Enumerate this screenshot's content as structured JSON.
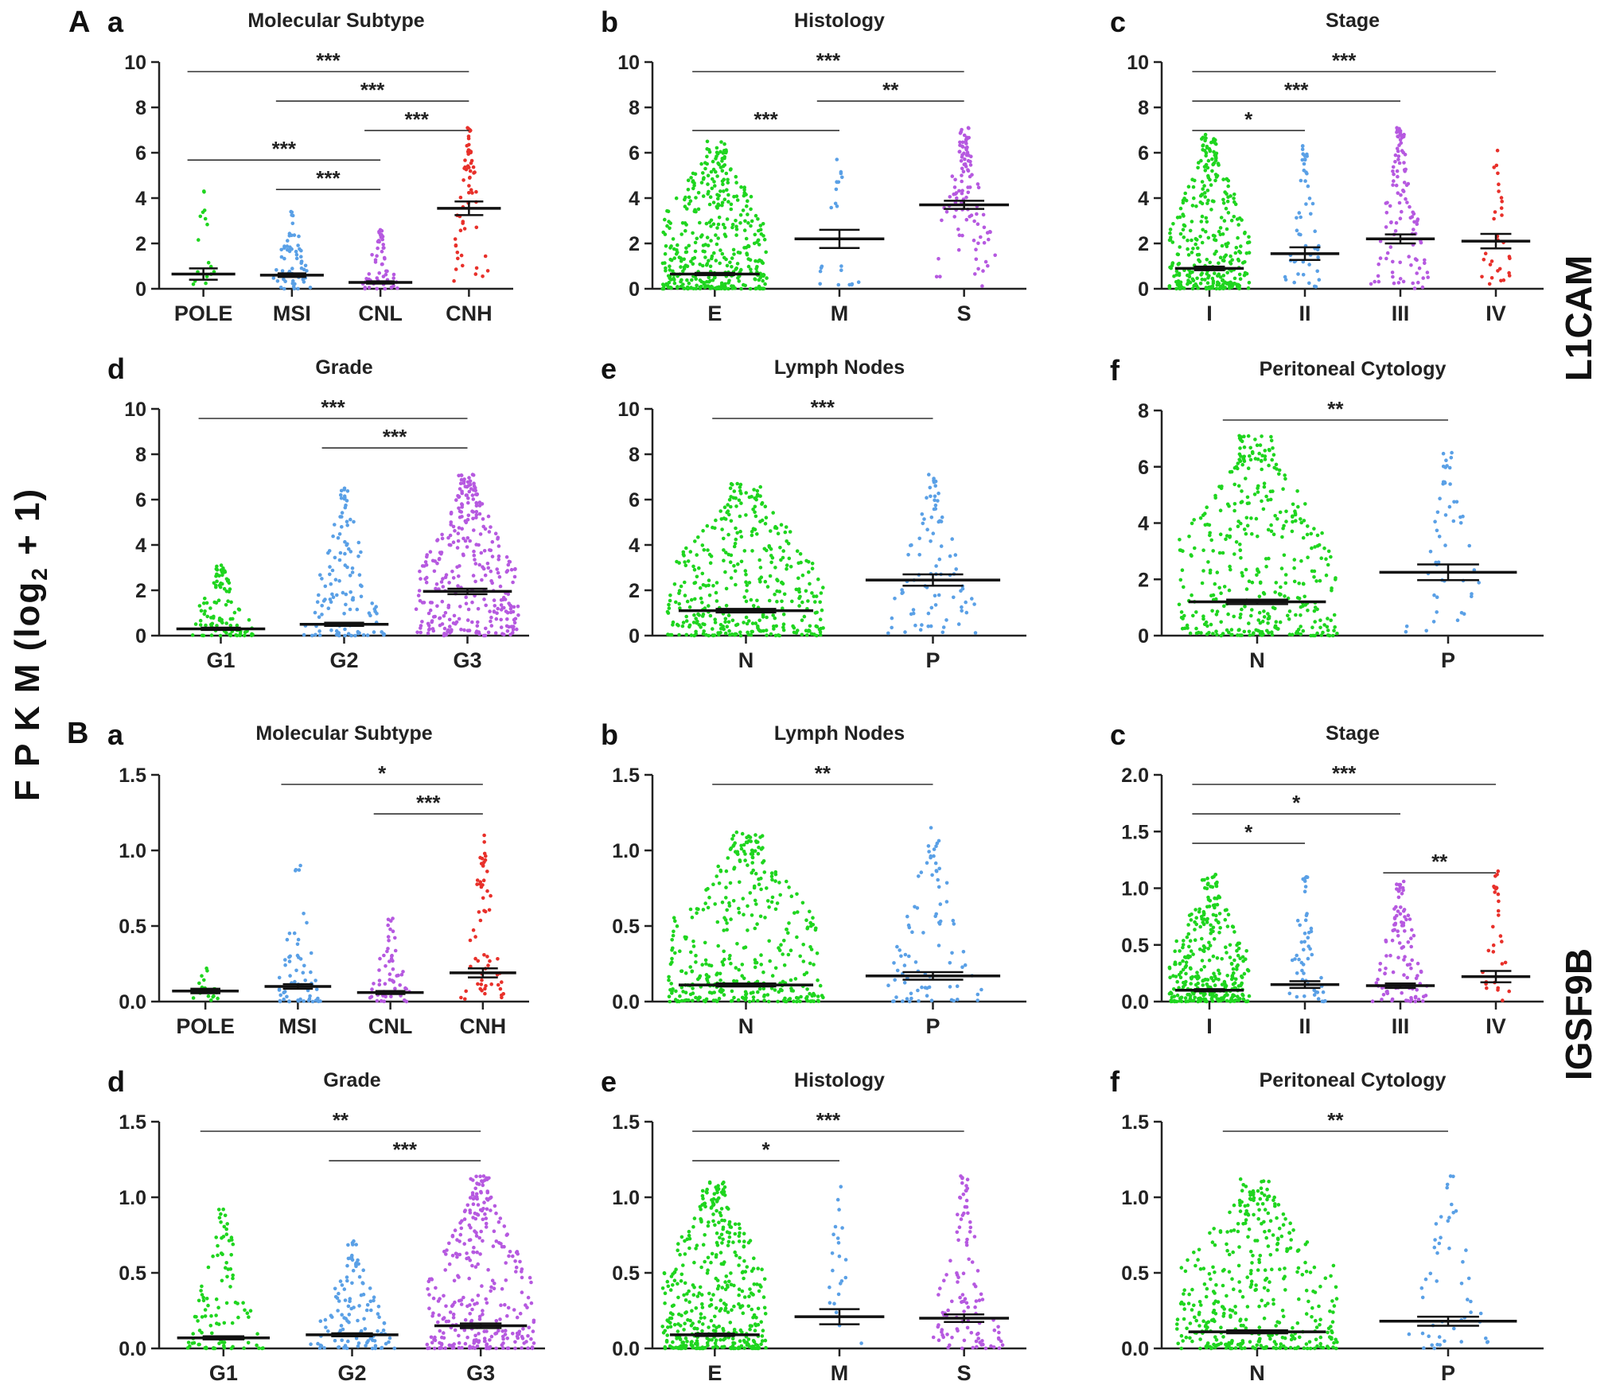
{
  "figure": {
    "y_title_prefix": "F P K M (log",
    "y_title_sub": "2",
    "y_title_suffix": " + 1)",
    "gene_a": "L1CAM",
    "gene_b": "IGSF9B",
    "section_a": "A",
    "section_b": "B"
  },
  "colors": {
    "green": "#1fd51f",
    "blue": "#5aa0e6",
    "purple": "#b659e0",
    "red": "#e8302a",
    "axis": "#222222"
  },
  "chart_data": [
    {
      "id": "Aa",
      "letter": "a",
      "type": "scatter",
      "title": "Molecular Subtype",
      "ylim": [
        0,
        10
      ],
      "yticks": [
        "0",
        "2",
        "4",
        "6",
        "8",
        "10"
      ],
      "categories": [
        "POLE",
        "MSI",
        "CNL",
        "CNH"
      ],
      "colors": [
        "green",
        "blue",
        "purple",
        "red"
      ],
      "n": [
        17,
        60,
        55,
        60
      ],
      "max": [
        4.3,
        3.4,
        2.6,
        7.1
      ],
      "mean": [
        0.65,
        0.6,
        0.28,
        3.55
      ],
      "sem": [
        0.25,
        0.08,
        0.05,
        0.3
      ],
      "sig": [
        {
          "from": 0,
          "to": 3,
          "label": "***"
        },
        {
          "from": 1,
          "to": 3,
          "label": "***"
        },
        {
          "from": 2,
          "to": 3,
          "label": "***"
        },
        {
          "from": 0,
          "to": 2,
          "label": "***"
        },
        {
          "from": 1,
          "to": 2,
          "label": "***"
        }
      ]
    },
    {
      "id": "Ab",
      "letter": "b",
      "type": "scatter",
      "title": "Histology",
      "ylim": [
        0,
        10
      ],
      "yticks": [
        "0",
        "2",
        "4",
        "6",
        "8",
        "10"
      ],
      "categories": [
        "E",
        "M",
        "S"
      ],
      "colors": [
        "green",
        "blue",
        "purple"
      ],
      "n": [
        420,
        22,
        110
      ],
      "max": [
        6.5,
        5.7,
        7.1
      ],
      "mean": [
        0.65,
        2.2,
        3.7
      ],
      "sem": [
        0.05,
        0.4,
        0.18
      ],
      "sig": [
        {
          "from": 0,
          "to": 2,
          "label": "***"
        },
        {
          "from": 1,
          "to": 2,
          "label": "**"
        },
        {
          "from": 0,
          "to": 1,
          "label": "***"
        }
      ]
    },
    {
      "id": "Ac",
      "letter": "c",
      "type": "scatter",
      "title": "Stage",
      "ylim": [
        0,
        10
      ],
      "yticks": [
        "0",
        "2",
        "4",
        "6",
        "8",
        "10"
      ],
      "categories": [
        "I",
        "II",
        "III",
        "IV"
      ],
      "colors": [
        "green",
        "blue",
        "purple",
        "red"
      ],
      "n": [
        330,
        50,
        110,
        30
      ],
      "max": [
        6.8,
        6.3,
        7.1,
        6.1
      ],
      "mean": [
        0.9,
        1.55,
        2.2,
        2.1
      ],
      "sem": [
        0.08,
        0.28,
        0.2,
        0.32
      ],
      "sig": [
        {
          "from": 0,
          "to": 3,
          "label": "***"
        },
        {
          "from": 0,
          "to": 2,
          "label": "***"
        },
        {
          "from": 0,
          "to": 1,
          "label": "*"
        }
      ]
    },
    {
      "id": "Ad",
      "letter": "d",
      "type": "scatter",
      "title": "Grade",
      "ylim": [
        0,
        10
      ],
      "yticks": [
        "0",
        "2",
        "4",
        "6",
        "8",
        "10"
      ],
      "categories": [
        "G1",
        "G2",
        "G3"
      ],
      "colors": [
        "green",
        "blue",
        "purple"
      ],
      "n": [
        100,
        120,
        320
      ],
      "max": [
        3.1,
        6.5,
        7.1
      ],
      "mean": [
        0.3,
        0.5,
        1.95
      ],
      "sem": [
        0.05,
        0.07,
        0.12
      ],
      "sig": [
        {
          "from": 0,
          "to": 2,
          "label": "***"
        },
        {
          "from": 1,
          "to": 2,
          "label": "***"
        }
      ]
    },
    {
      "id": "Ae",
      "letter": "e",
      "type": "scatter",
      "title": "Lymph Nodes",
      "ylim": [
        0,
        10
      ],
      "yticks": [
        "0",
        "2",
        "4",
        "6",
        "8",
        "10"
      ],
      "categories": [
        "N",
        "P"
      ],
      "colors": [
        "green",
        "blue"
      ],
      "n": [
        380,
        85
      ],
      "max": [
        6.7,
        7.1
      ],
      "mean": [
        1.1,
        2.45
      ],
      "sem": [
        0.08,
        0.25
      ],
      "sig": [
        {
          "from": 0,
          "to": 1,
          "label": "***"
        }
      ]
    },
    {
      "id": "Af",
      "letter": "f",
      "type": "scatter",
      "title": "Peritoneal Cytology",
      "ylim": [
        0,
        8
      ],
      "yticks": [
        "0",
        "2",
        "4",
        "6",
        "8"
      ],
      "categories": [
        "N",
        "P"
      ],
      "colors": [
        "green",
        "blue"
      ],
      "n": [
        400,
        50
      ],
      "max": [
        7.1,
        6.5
      ],
      "mean": [
        1.2,
        2.25
      ],
      "sem": [
        0.08,
        0.28
      ],
      "sig": [
        {
          "from": 0,
          "to": 1,
          "label": "**"
        }
      ]
    },
    {
      "id": "Ba",
      "letter": "a",
      "type": "scatter",
      "title": "Molecular Subtype",
      "ylim": [
        0,
        1.5
      ],
      "yticks": [
        "0.0",
        "0.5",
        "1.0",
        "1.5"
      ],
      "categories": [
        "POLE",
        "MSI",
        "CNL",
        "CNH"
      ],
      "colors": [
        "green",
        "blue",
        "purple",
        "red"
      ],
      "n": [
        17,
        60,
        55,
        60
      ],
      "max": [
        0.22,
        0.9,
        0.55,
        1.1
      ],
      "mean": [
        0.07,
        0.1,
        0.06,
        0.19
      ],
      "sem": [
        0.015,
        0.015,
        0.01,
        0.03
      ],
      "sig": [
        {
          "from": 1,
          "to": 3,
          "label": "*"
        },
        {
          "from": 2,
          "to": 3,
          "label": "***"
        }
      ]
    },
    {
      "id": "Bb",
      "letter": "b",
      "type": "scatter",
      "title": "Lymph Nodes",
      "ylim": [
        0,
        1.5
      ],
      "yticks": [
        "0.0",
        "0.5",
        "1.0",
        "1.5"
      ],
      "categories": [
        "N",
        "P"
      ],
      "colors": [
        "green",
        "blue"
      ],
      "n": [
        380,
        85
      ],
      "max": [
        1.12,
        1.15
      ],
      "mean": [
        0.11,
        0.17
      ],
      "sem": [
        0.01,
        0.025
      ],
      "sig": [
        {
          "from": 0,
          "to": 1,
          "label": "**"
        }
      ]
    },
    {
      "id": "Bc",
      "letter": "c",
      "type": "scatter",
      "title": "Stage",
      "ylim": [
        0,
        2
      ],
      "yticks": [
        "0.0",
        "0.5",
        "1.0",
        "1.5",
        "2.0"
      ],
      "categories": [
        "I",
        "II",
        "III",
        "IV"
      ],
      "colors": [
        "green",
        "blue",
        "purple",
        "red"
      ],
      "n": [
        330,
        50,
        110,
        30
      ],
      "max": [
        1.12,
        1.1,
        1.06,
        1.15
      ],
      "mean": [
        0.1,
        0.15,
        0.14,
        0.22
      ],
      "sem": [
        0.01,
        0.03,
        0.02,
        0.05
      ],
      "sig": [
        {
          "from": 0,
          "to": 3,
          "label": "***"
        },
        {
          "from": 0,
          "to": 2,
          "label": "*"
        },
        {
          "from": 0,
          "to": 1,
          "label": "*"
        },
        {
          "from": 2,
          "to": 3,
          "label": "**"
        }
      ]
    },
    {
      "id": "Bd",
      "letter": "d",
      "type": "scatter",
      "title": "Grade",
      "ylim": [
        0,
        1.5
      ],
      "yticks": [
        "0.0",
        "0.5",
        "1.0",
        "1.5"
      ],
      "categories": [
        "G1",
        "G2",
        "G3"
      ],
      "colors": [
        "green",
        "blue",
        "purple"
      ],
      "n": [
        100,
        120,
        320
      ],
      "max": [
        0.92,
        0.71,
        1.14
      ],
      "mean": [
        0.07,
        0.09,
        0.15
      ],
      "sem": [
        0.01,
        0.01,
        0.015
      ],
      "sig": [
        {
          "from": 0,
          "to": 2,
          "label": "**"
        },
        {
          "from": 1,
          "to": 2,
          "label": "***"
        }
      ]
    },
    {
      "id": "Be",
      "letter": "e",
      "type": "scatter",
      "title": "Histology",
      "ylim": [
        0,
        1.5
      ],
      "yticks": [
        "0.0",
        "0.5",
        "1.0",
        "1.5"
      ],
      "categories": [
        "E",
        "M",
        "S"
      ],
      "colors": [
        "green",
        "blue",
        "purple"
      ],
      "n": [
        420,
        22,
        110
      ],
      "max": [
        1.1,
        1.07,
        1.14
      ],
      "mean": [
        0.09,
        0.21,
        0.2
      ],
      "sem": [
        0.008,
        0.05,
        0.025
      ],
      "sig": [
        {
          "from": 0,
          "to": 2,
          "label": "***"
        },
        {
          "from": 0,
          "to": 1,
          "label": "*"
        }
      ]
    },
    {
      "id": "Bf",
      "letter": "f",
      "type": "scatter",
      "title": "Peritoneal Cytology",
      "ylim": [
        0,
        1.5
      ],
      "yticks": [
        "0.0",
        "0.5",
        "1.0",
        "1.5"
      ],
      "categories": [
        "N",
        "P"
      ],
      "colors": [
        "green",
        "blue"
      ],
      "n": [
        400,
        50
      ],
      "max": [
        1.12,
        1.14
      ],
      "mean": [
        0.11,
        0.18
      ],
      "sem": [
        0.01,
        0.03
      ],
      "sig": [
        {
          "from": 0,
          "to": 1,
          "label": "**"
        }
      ]
    }
  ]
}
